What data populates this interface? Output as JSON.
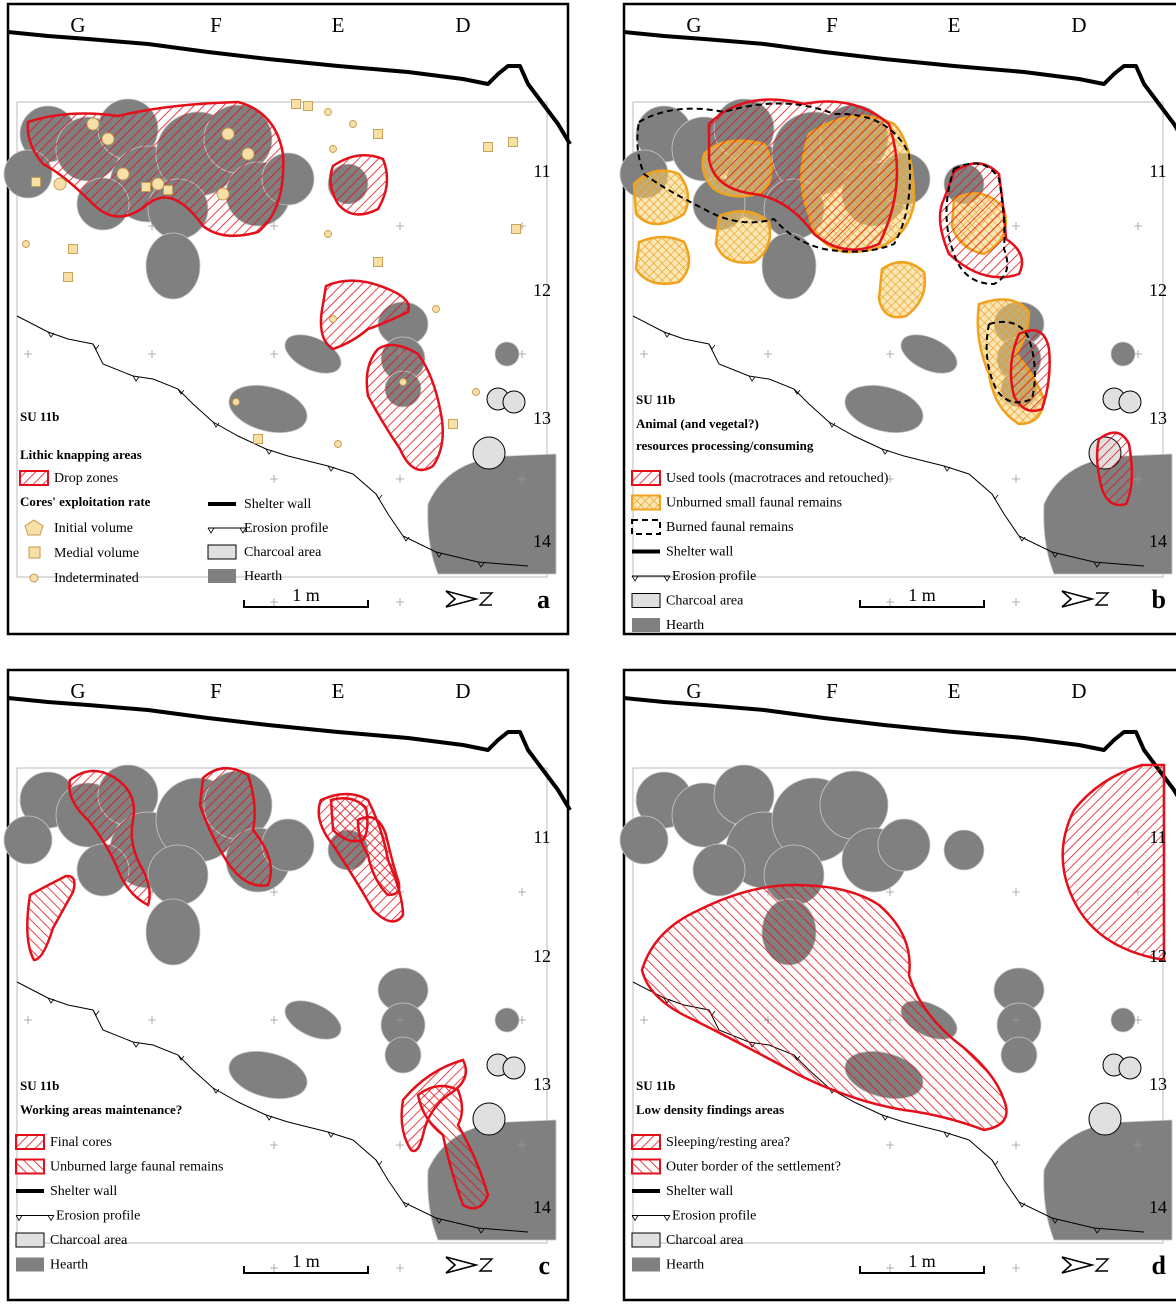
{
  "columns": [
    "G",
    "F",
    "E",
    "D"
  ],
  "rows": [
    "11",
    "12",
    "13",
    "14"
  ],
  "colors": {
    "hearth": "#808080",
    "charcoal": "#e0e0e0",
    "red": "#e3101c",
    "orange": "#f0a21e",
    "tan": "#f7dfa8",
    "map_bg": "#ffffff",
    "wall": "#000000"
  },
  "panels": [
    {
      "letter": "a",
      "su": "SU 11b",
      "title": "Lithic knapping areas",
      "legend": [
        {
          "symbol": "hatch-red",
          "label": "Drop zones"
        }
      ],
      "subtitle": "Cores' exploitation rate",
      "legend2": [
        {
          "symbol": "pentagon",
          "label": "Initial volume"
        },
        {
          "symbol": "square",
          "label": "Medial volume"
        },
        {
          "symbol": "circle",
          "label": "Indeterminated"
        }
      ],
      "legend3": [
        {
          "symbol": "wall",
          "label": "Shelter wall"
        },
        {
          "symbol": "erosion",
          "label": "Erosion profile"
        },
        {
          "symbol": "charcoal",
          "label": "Charcoal area"
        },
        {
          "symbol": "hearth",
          "label": "Hearth"
        }
      ],
      "scale": "1 m"
    },
    {
      "letter": "b",
      "su": "SU 11b",
      "title": "Animal (and vegetal?)",
      "title2": "resources processing/consuming",
      "legend": [
        {
          "symbol": "hatch-red",
          "label": "Used tools (macrotraces and retouched)"
        },
        {
          "symbol": "cross-orange",
          "label": "Unburned small faunal remains"
        },
        {
          "symbol": "dashed",
          "label": "Burned faunal remains"
        },
        {
          "symbol": "wall",
          "label": "Shelter wall"
        },
        {
          "symbol": "erosion",
          "label": "Erosion profile"
        },
        {
          "symbol": "charcoal",
          "label": "Charcoal area"
        },
        {
          "symbol": "hearth",
          "label": "Hearth"
        }
      ],
      "scale": "1 m"
    },
    {
      "letter": "c",
      "su": "SU 11b",
      "title": "Working areas maintenance?",
      "legend": [
        {
          "symbol": "hatch-red",
          "label": "Final cores"
        },
        {
          "symbol": "hatch-red-fwd",
          "label": "Unburned large faunal remains"
        },
        {
          "symbol": "wall",
          "label": "Shelter wall"
        },
        {
          "symbol": "erosion",
          "label": "Erosion profile"
        },
        {
          "symbol": "charcoal",
          "label": "Charcoal area"
        },
        {
          "symbol": "hearth",
          "label": "Hearth"
        }
      ],
      "scale": "1 m"
    },
    {
      "letter": "d",
      "su": "SU 11b",
      "title": "Low density findings areas",
      "legend": [
        {
          "symbol": "hatch-red",
          "label": "Sleeping/resting area?"
        },
        {
          "symbol": "hatch-red-fwd",
          "label": "Outer border of the settlement?"
        },
        {
          "symbol": "wall",
          "label": "Shelter wall"
        },
        {
          "symbol": "erosion",
          "label": "Erosion profile"
        },
        {
          "symbol": "charcoal",
          "label": "Charcoal area"
        },
        {
          "symbol": "hearth",
          "label": "Hearth"
        }
      ],
      "scale": "1 m"
    }
  ]
}
